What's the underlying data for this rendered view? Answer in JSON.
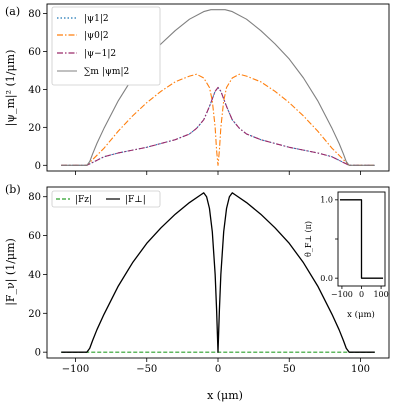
{
  "chart_data": [
    {
      "type": "line",
      "panel_label": "(a)",
      "ylabel": "|ψ_m|² (1/μm)",
      "xlim": [
        -120,
        120
      ],
      "ylim": [
        -3,
        85
      ],
      "yticks": [
        0,
        20,
        40,
        60,
        80
      ],
      "xticks": [
        -100,
        -50,
        0,
        50,
        100
      ],
      "show_x_tick_labels": false,
      "grid": false,
      "legend_position": "upper-left",
      "series": [
        {
          "name": "|ψ₁|²",
          "color": "#1f77b4",
          "style": "dotted",
          "x": [
            -110,
            -92,
            -88,
            -84,
            -80,
            -70,
            -60,
            -50,
            -40,
            -30,
            -20,
            -15,
            -10,
            -6,
            -4,
            -2,
            0,
            2,
            4,
            6,
            10,
            15,
            20,
            30,
            40,
            50,
            60,
            70,
            80,
            84,
            88,
            92,
            110
          ],
          "y": [
            0,
            0,
            1.5,
            3,
            4.5,
            6.5,
            8,
            9.5,
            11.5,
            13.5,
            16.5,
            19.5,
            24,
            31,
            35,
            39,
            41,
            39,
            35,
            31,
            24,
            19.5,
            16.5,
            13.5,
            11.5,
            9.5,
            8,
            6.5,
            4.5,
            3,
            1.5,
            0,
            0
          ]
        },
        {
          "name": "|ψ₀|²",
          "color": "#ff7f0e",
          "style": "dashdot",
          "x": [
            -110,
            -92,
            -88,
            -84,
            -80,
            -70,
            -60,
            -50,
            -40,
            -30,
            -20,
            -15,
            -10,
            -6,
            -4,
            -2,
            -1,
            0,
            1,
            2,
            4,
            6,
            10,
            15,
            20,
            30,
            40,
            50,
            60,
            70,
            80,
            84,
            88,
            92,
            110
          ],
          "y": [
            0,
            0,
            3,
            6,
            9,
            18,
            26,
            33,
            39,
            44,
            47,
            48,
            46,
            41,
            34,
            20,
            8,
            0,
            8,
            20,
            34,
            41,
            46,
            48,
            47,
            44,
            39,
            33,
            26,
            18,
            9,
            6,
            3,
            0,
            0
          ]
        },
        {
          "name": "|ψ₋₁|²",
          "color": "#9b2a6a",
          "style": "dashdot",
          "x": [
            -110,
            -92,
            -88,
            -84,
            -80,
            -70,
            -60,
            -50,
            -40,
            -30,
            -20,
            -15,
            -10,
            -6,
            -4,
            -2,
            0,
            2,
            4,
            6,
            10,
            15,
            20,
            30,
            40,
            50,
            60,
            70,
            80,
            84,
            88,
            92,
            110
          ],
          "y": [
            0,
            0,
            1.5,
            3,
            4.5,
            6.5,
            8,
            9.5,
            11.5,
            13.5,
            16.5,
            19.5,
            24,
            31,
            35,
            39,
            41,
            39,
            35,
            31,
            24,
            19.5,
            16.5,
            13.5,
            11.5,
            9.5,
            8,
            6.5,
            4.5,
            3,
            1.5,
            0,
            0
          ]
        },
        {
          "name": "∑_m |ψ_m|²",
          "color": "#808080",
          "style": "solid",
          "x": [
            -110,
            -92,
            -90,
            -88,
            -85,
            -80,
            -70,
            -60,
            -50,
            -40,
            -30,
            -20,
            -10,
            -5,
            0,
            5,
            10,
            20,
            30,
            40,
            50,
            60,
            70,
            80,
            85,
            88,
            90,
            92,
            110
          ],
          "y": [
            0,
            0,
            2,
            6,
            11.5,
            19.5,
            34,
            46,
            56,
            64,
            71,
            77,
            81,
            82,
            82,
            82,
            81,
            77,
            71,
            64,
            56,
            46,
            34,
            19.5,
            11.5,
            6,
            2,
            0,
            0
          ]
        }
      ]
    },
    {
      "type": "line",
      "panel_label": "(b)",
      "xlabel": "x (μm)",
      "ylabel": "|F_ν| (1/μm)",
      "xlim": [
        -120,
        120
      ],
      "ylim": [
        -3,
        85
      ],
      "yticks": [
        0,
        20,
        40,
        60,
        80
      ],
      "xticks": [
        -100,
        -50,
        0,
        50,
        100
      ],
      "grid": false,
      "legend_position": "upper-left",
      "series": [
        {
          "name": "|F_z|",
          "color": "#2ca02c",
          "style": "dashed",
          "x": [
            -110,
            110
          ],
          "y": [
            0,
            0
          ]
        },
        {
          "name": "|F_⊥|",
          "color": "#000000",
          "style": "solid",
          "x": [
            -110,
            -92,
            -90,
            -88,
            -85,
            -80,
            -70,
            -60,
            -50,
            -40,
            -30,
            -20,
            -12,
            -10,
            -8,
            -6,
            -4,
            -2,
            -1,
            0,
            1,
            2,
            4,
            6,
            8,
            10,
            12,
            20,
            30,
            40,
            50,
            60,
            70,
            80,
            85,
            88,
            90,
            92,
            110
          ],
          "y": [
            0,
            0,
            2,
            6,
            11.5,
            19.5,
            34,
            46,
            56,
            64,
            71,
            77,
            81,
            82,
            80,
            74,
            62,
            40,
            22,
            0,
            22,
            40,
            62,
            74,
            80,
            82,
            81,
            77,
            71,
            64,
            56,
            46,
            34,
            19.5,
            11.5,
            6,
            2,
            0,
            0
          ]
        }
      ]
    },
    {
      "type": "line",
      "role": "inset",
      "xlabel": "x (μm)",
      "ylabel": "θ_F⊥ (π)",
      "xlim": [
        -120,
        120
      ],
      "ylim": [
        -0.1,
        1.1
      ],
      "xticks": [
        -100,
        0,
        100
      ],
      "yticks": [
        0,
        0.5,
        1
      ],
      "series": [
        {
          "color": "#000000",
          "style": "solid",
          "x": [
            -110,
            0,
            0,
            110
          ],
          "y": [
            1,
            1,
            0,
            0
          ]
        }
      ]
    }
  ],
  "legends": {
    "a": [
      "|ψ1|2",
      "|ψ0|2",
      "|ψ−1|2",
      "∑m |ψm|2"
    ],
    "b": [
      "|Fz|",
      "|F⊥|"
    ]
  }
}
